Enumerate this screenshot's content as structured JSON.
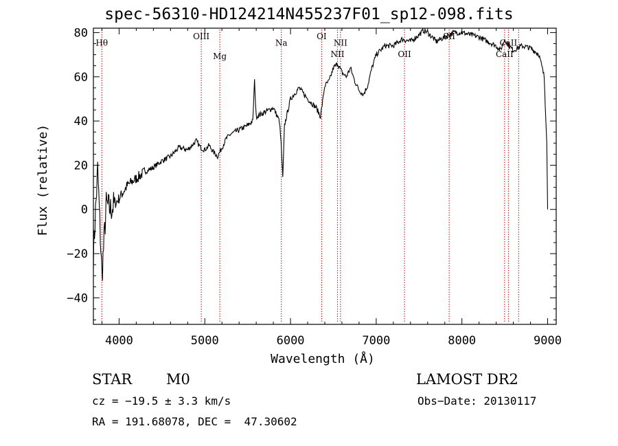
{
  "chart_data": {
    "type": "line",
    "title": "spec-56310-HD124214N455237F01_sp12-098.fits",
    "xlabel": "Wavelength (Å)",
    "ylabel": "Flux (relative)",
    "xlim": [
      3700,
      9100
    ],
    "ylim": [
      -52,
      82
    ],
    "xticks": [
      4000,
      5000,
      6000,
      7000,
      8000,
      9000
    ],
    "yticks": [
      -40,
      -20,
      0,
      20,
      40,
      60,
      80
    ],
    "grid": false,
    "series": [
      {
        "x": [
          3700,
          3750,
          3800,
          3850,
          3900,
          4000,
          4100,
          4200,
          4300,
          4400,
          4500,
          4600,
          4700,
          4800,
          4850,
          4900,
          4950,
          5000,
          5050,
          5100,
          5150,
          5200,
          5250,
          5300,
          5400,
          5500,
          5560,
          5580,
          5600,
          5700,
          5800,
          5870,
          5890,
          5910,
          5930,
          6000,
          6100,
          6200,
          6300,
          6350,
          6400,
          6450,
          6500,
          6550,
          6600,
          6650,
          6700,
          6750,
          6800,
          6850,
          6900,
          6950,
          7000,
          7050,
          7100,
          7200,
          7300,
          7400,
          7500,
          7550,
          7600,
          7700,
          7800,
          7850,
          7900,
          8000,
          8100,
          8200,
          8300,
          8400,
          8450,
          8500,
          8550,
          8600,
          8700,
          8800,
          8900,
          8960,
          8990,
          9000
        ],
        "y": [
          -20,
          18,
          -30,
          2,
          0,
          5,
          11,
          14,
          17,
          19,
          22,
          24,
          28,
          27,
          29,
          31,
          28,
          27,
          29,
          26,
          24,
          28,
          32,
          34,
          36,
          38,
          40,
          58,
          42,
          44,
          46,
          40,
          30,
          14,
          38,
          50,
          55,
          50,
          46,
          42,
          56,
          58,
          64,
          66,
          62,
          60,
          64,
          58,
          54,
          52,
          56,
          64,
          70,
          72,
          74,
          74,
          77,
          76,
          79,
          81,
          80,
          76,
          78,
          79,
          80,
          80,
          79,
          78,
          76,
          74,
          72,
          77,
          74,
          72,
          74,
          73,
          70,
          60,
          30,
          0
        ]
      }
    ],
    "annotations": [
      {
        "label": "Hθ",
        "x": 3798,
        "y": 74
      },
      {
        "label": "OIII",
        "x": 4959,
        "y": 77
      },
      {
        "label": "Mg",
        "x": 5175,
        "y": 68
      },
      {
        "label": "Na",
        "x": 5893,
        "y": 74
      },
      {
        "label": "OI",
        "x": 6363,
        "y": 77
      },
      {
        "label": "NII",
        "x": 6548,
        "y": 69
      },
      {
        "label": "NII",
        "x": 6583,
        "y": 74
      },
      {
        "label": "OII",
        "x": 7330,
        "y": 69
      },
      {
        "label": "SII",
        "x": 7851,
        "y": 77
      },
      {
        "label": "CaII",
        "x": 8498,
        "y": 69
      },
      {
        "label": "CaII",
        "x": 8542,
        "y": 74
      }
    ],
    "lines_x": [
      3798,
      4959,
      5175,
      5893,
      6363,
      6548,
      6583,
      7330,
      7851,
      8498,
      8542,
      8662
    ]
  },
  "info": {
    "class_label": "STAR",
    "subclass": "M0",
    "survey": "LAMOST DR2",
    "cz": "cz = −19.5 ± 3.3 km/s",
    "obs_date": "Obs−Date: 20130117",
    "coords": "RA = 191.68078, DEC =  47.30602"
  },
  "colors": {
    "spectrum": "#000000",
    "line_marker": "#cc0000",
    "axes": "#000000"
  }
}
